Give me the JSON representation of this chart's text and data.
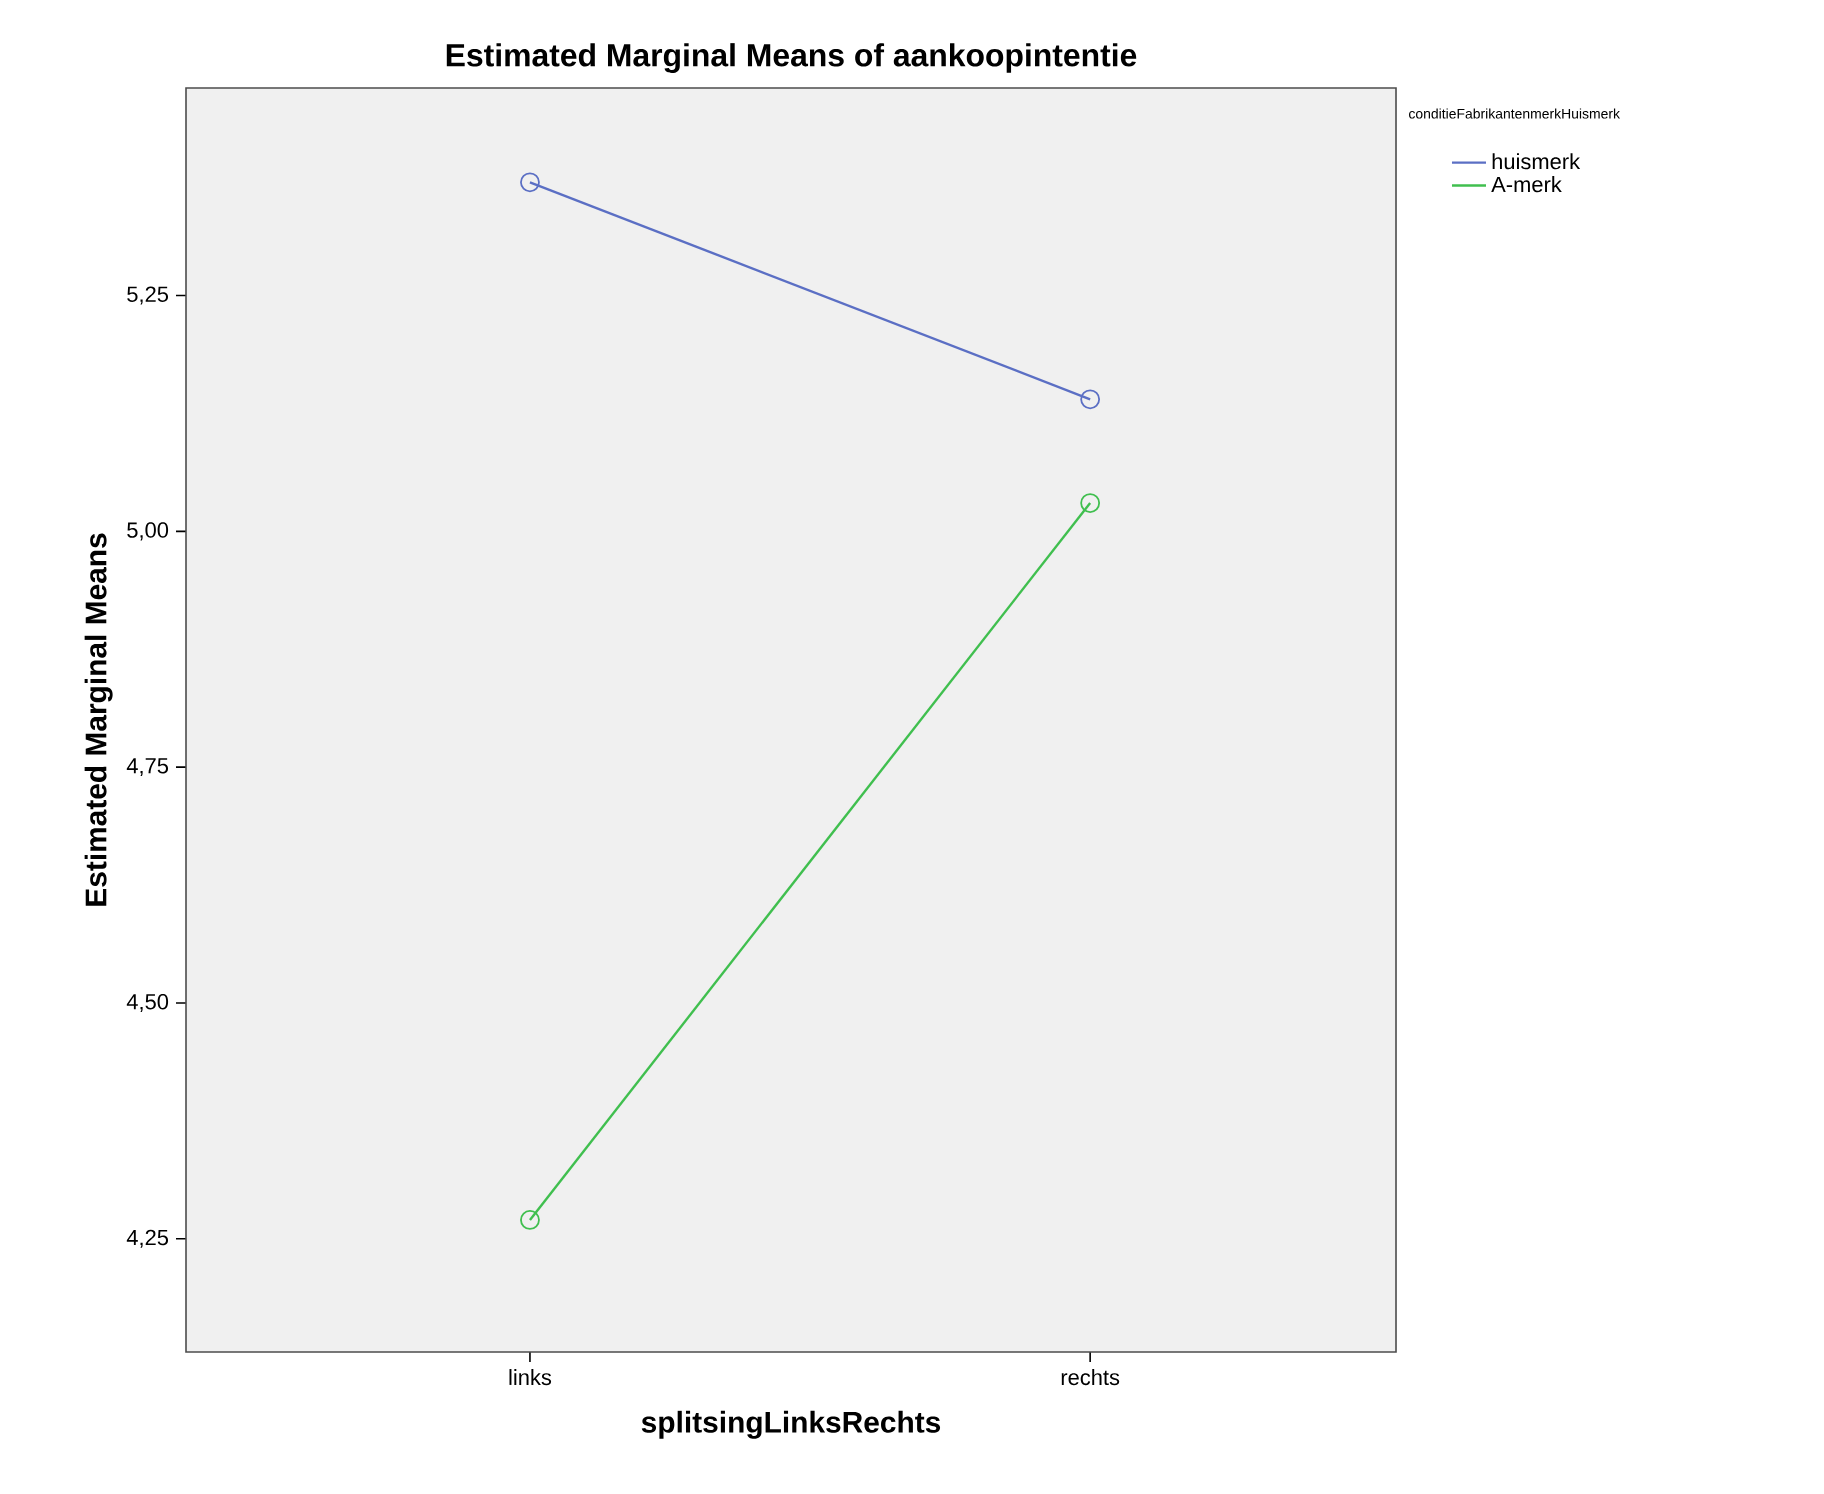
{
  "chart_data": {
    "type": "line",
    "title": "Estimated Marginal Means of aankoopintentie",
    "xlabel": "splitsingLinksRechts",
    "ylabel": "Estimated Marginal Means",
    "legend_title": "conditieFabrikantenmerkHuismerk",
    "categories": [
      "links",
      "rechts"
    ],
    "series": [
      {
        "name": "huismerk",
        "color": "#5b6fc4",
        "values": [
          5.37,
          5.14
        ]
      },
      {
        "name": "A-merk",
        "color": "#40bf4f",
        "values": [
          4.27,
          5.03
        ]
      }
    ],
    "ylim": [
      4.13,
      5.47
    ],
    "yticks": [
      {
        "value": 4.25,
        "label": "4,25"
      },
      {
        "value": 4.5,
        "label": "4,50"
      },
      {
        "value": 4.75,
        "label": "4,75"
      },
      {
        "value": 5.0,
        "label": "5,00"
      },
      {
        "value": 5.25,
        "label": "5,25"
      }
    ],
    "grid": false,
    "legend": "top right",
    "marker": "circle",
    "line_style": "solid"
  }
}
